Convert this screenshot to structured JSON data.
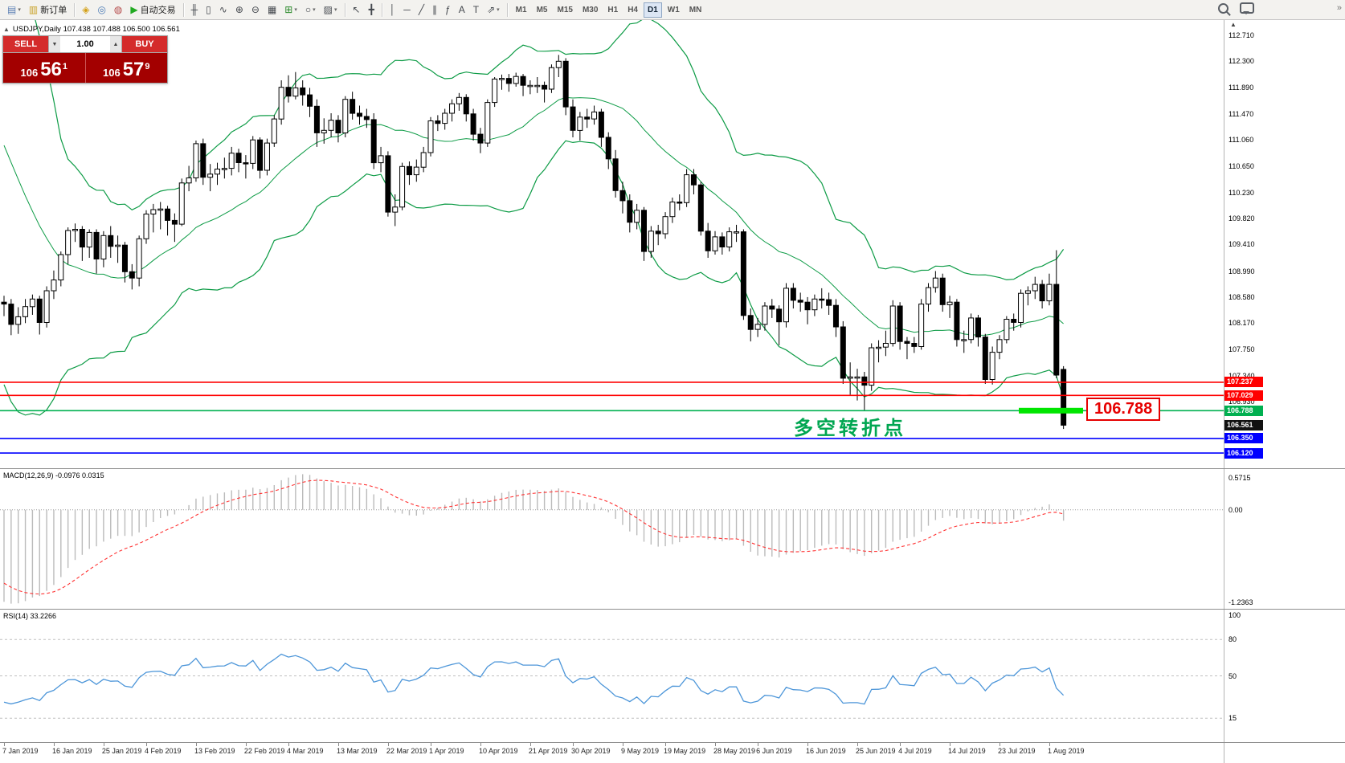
{
  "colors": {
    "bull_candle": "#FFFFFF",
    "bear_candle": "#000000",
    "candle_border": "#000000",
    "bollinger": "#0C9B45",
    "level_red": "#FF0000",
    "level_blue": "#0000FF",
    "level_green": "#00B050",
    "highlight_green": "#00E600",
    "macd_hist": "#BBBBBB",
    "macd_signal": "#FF3333",
    "rsi_line": "#4D96D9",
    "sell_button": "#D42B2B",
    "price_panel": "#A30000",
    "annotation": "#00A651",
    "current_tag": "#111111"
  },
  "toolbar": {
    "timeframes": [
      "M1",
      "M5",
      "M15",
      "M30",
      "H1",
      "H4",
      "D1",
      "W1",
      "MN"
    ],
    "active_timeframe": "D1",
    "icon_groups": [
      {
        "items": [
          {
            "name": "new-chart-button",
            "glyph": "▤",
            "glyph_color": "#5b7fb4",
            "caret": true
          },
          {
            "name": "new-order-button",
            "glyph": "▥",
            "glyph_color": "#c9a227",
            "label": "新订单"
          }
        ]
      },
      {
        "items": [
          {
            "name": "market-watch-button",
            "glyph": "◈",
            "glyph_color": "#d4a017"
          },
          {
            "name": "navigator-button",
            "glyph": "◎",
            "glyph_color": "#4a7ab5"
          },
          {
            "name": "terminal-button",
            "glyph": "◍",
            "glyph_color": "#b54a4a"
          },
          {
            "name": "autotrading-button",
            "glyph": "▶",
            "glyph_color": "#22aa22",
            "label": "自动交易"
          }
        ]
      },
      {
        "items": [
          {
            "name": "bar-chart-button",
            "glyph": "╫"
          },
          {
            "name": "candlestick-chart-button",
            "glyph": "▯"
          },
          {
            "name": "line-chart-button",
            "glyph": "∿"
          },
          {
            "name": "zoom-in-button",
            "glyph": "⊕"
          },
          {
            "name": "zoom-out-button",
            "glyph": "⊖"
          },
          {
            "name": "tile-windows-button",
            "glyph": "▦"
          },
          {
            "name": "indicators-button",
            "glyph": "⊞",
            "glyph_color": "#2a8a2a",
            "caret": true
          },
          {
            "name": "periods-button",
            "glyph": "○",
            "caret": true
          },
          {
            "name": "templates-button",
            "glyph": "▨",
            "caret": true
          }
        ]
      },
      {
        "items": [
          {
            "name": "cursor-button",
            "glyph": "↖"
          },
          {
            "name": "crosshair-button",
            "glyph": "╋"
          }
        ]
      },
      {
        "items": [
          {
            "name": "vertical-line-button",
            "glyph": "│"
          },
          {
            "name": "horizontal-line-button",
            "glyph": "─"
          },
          {
            "name": "trendline-button",
            "glyph": "╱"
          },
          {
            "name": "channel-button",
            "glyph": "∥"
          },
          {
            "name": "fibonacci-button",
            "glyph": "ƒ"
          },
          {
            "name": "text-button",
            "glyph": "A"
          },
          {
            "name": "label-button",
            "glyph": "T"
          },
          {
            "name": "arrows-button",
            "glyph": "⇗",
            "caret": true
          }
        ]
      }
    ],
    "overflow_glyph": "»"
  },
  "chart": {
    "symbol_title": "USDJPY,Daily 107.438 107.488 106.500 106.561"
  },
  "trade_panel": {
    "sell_label": "SELL",
    "buy_label": "BUY",
    "volume": "1.00",
    "sell_price_prefix": "106",
    "sell_price_main": "56",
    "sell_price_sup": "1",
    "buy_price_prefix": "106",
    "buy_price_main": "57",
    "buy_price_sup": "9"
  },
  "annotation": {
    "text": "多空转折点",
    "price_label": "106.788"
  },
  "levels": [
    {
      "price": 107.237,
      "color": "#FF0000",
      "tag": "107.237"
    },
    {
      "price": 107.029,
      "color": "#FF0000",
      "tag": "107.029"
    },
    {
      "price": 106.788,
      "color": "#00B050",
      "tag": "106.788",
      "highlight": true
    },
    {
      "price": 106.35,
      "color": "#0000FF",
      "tag": "106.350"
    },
    {
      "price": 106.12,
      "color": "#0000FF",
      "tag": "106.120"
    }
  ],
  "current_price_tag": "106.561",
  "price_axis_labels": [
    "112.710",
    "112.300",
    "111.890",
    "111.470",
    "111.060",
    "110.650",
    "110.230",
    "109.820",
    "109.410",
    "108.990",
    "108.580",
    "108.170",
    "107.750",
    "107.340",
    "106.930"
  ],
  "macd": {
    "label": "MACD(12,26,9) -0.0976 0.0315",
    "axis": [
      "0.5715",
      "0.00",
      "-1.2363"
    ]
  },
  "rsi": {
    "label": "RSI(14) 33.2266",
    "axis": [
      "100",
      "80",
      "50",
      "15"
    ],
    "levels": [
      80,
      50,
      15
    ],
    "period": 14
  },
  "date_axis": [
    {
      "idx": 0,
      "label": "7 Jan 2019"
    },
    {
      "idx": 7,
      "label": "16 Jan 2019"
    },
    {
      "idx": 14,
      "label": "25 Jan 2019"
    },
    {
      "idx": 20,
      "label": "4 Feb 2019"
    },
    {
      "idx": 27,
      "label": "13 Feb 2019"
    },
    {
      "idx": 34,
      "label": "22 Feb 2019"
    },
    {
      "idx": 40,
      "label": "4 Mar 2019"
    },
    {
      "idx": 47,
      "label": "13 Mar 2019"
    },
    {
      "idx": 54,
      "label": "22 Mar 2019"
    },
    {
      "idx": 60,
      "label": "1 Apr 2019"
    },
    {
      "idx": 67,
      "label": "10 Apr 2019"
    },
    {
      "idx": 74,
      "label": "21 Apr 2019"
    },
    {
      "idx": 80,
      "label": "30 Apr 2019"
    },
    {
      "idx": 87,
      "label": "9 May 2019"
    },
    {
      "idx": 93,
      "label": "19 May 2019"
    },
    {
      "idx": 100,
      "label": "28 May 2019"
    },
    {
      "idx": 106,
      "label": "6 Jun 2019"
    },
    {
      "idx": 113,
      "label": "16 Jun 2019"
    },
    {
      "idx": 120,
      "label": "25 Jun 2019"
    },
    {
      "idx": 126,
      "label": "4 Jul 2019"
    },
    {
      "idx": 133,
      "label": "14 Jul 2019"
    },
    {
      "idx": 140,
      "label": "23 Jul 2019"
    },
    {
      "idx": 147,
      "label": "1 Aug 2019"
    }
  ],
  "chart_data": {
    "type": "candlestick",
    "symbol": "USDJPY",
    "timeframe": "Daily",
    "visible_price_range": [
      105.88,
      112.95
    ],
    "bollinger": {
      "period": 20,
      "deviation": 2
    },
    "macd_params": [
      12,
      26,
      9
    ],
    "rsi_period": 14,
    "warmup_closes": [
      113.65,
      112.97,
      112.68,
      112.69,
      112.69,
      113.38,
      113.3,
      113.54,
      113.6,
      113.63,
      113.4,
      112.83,
      112.56,
      112.47,
      112.35,
      111.25,
      110.35,
      110.28,
      110.47,
      109.7,
      109.58,
      110.28,
      109.69,
      108.88,
      107.63,
      108.52
    ],
    "candles": [
      [
        108.5,
        108.6,
        108.28,
        108.47
      ],
      [
        108.47,
        108.55,
        107.98,
        108.15
      ],
      [
        108.15,
        108.42,
        108.0,
        108.27
      ],
      [
        108.27,
        108.55,
        108.17,
        108.43
      ],
      [
        108.43,
        108.62,
        108.3,
        108.55
      ],
      [
        108.55,
        108.6,
        107.99,
        108.18
      ],
      [
        108.18,
        108.75,
        108.1,
        108.68
      ],
      [
        108.68,
        109.0,
        108.55,
        108.85
      ],
      [
        108.85,
        109.3,
        108.75,
        109.25
      ],
      [
        109.25,
        109.68,
        109.1,
        109.63
      ],
      [
        109.63,
        109.74,
        109.45,
        109.65
      ],
      [
        109.65,
        109.7,
        109.15,
        109.37
      ],
      [
        109.37,
        109.65,
        109.2,
        109.6
      ],
      [
        109.6,
        109.65,
        108.95,
        109.18
      ],
      [
        109.18,
        109.62,
        109.05,
        109.55
      ],
      [
        109.55,
        109.7,
        109.2,
        109.38
      ],
      [
        109.38,
        109.55,
        109.12,
        109.4
      ],
      [
        109.4,
        109.45,
        108.81,
        108.98
      ],
      [
        108.98,
        109.1,
        108.7,
        108.88
      ],
      [
        108.88,
        109.55,
        108.75,
        109.5
      ],
      [
        109.5,
        109.95,
        109.42,
        109.89
      ],
      [
        109.89,
        110.05,
        109.6,
        109.96
      ],
      [
        109.96,
        110.08,
        109.65,
        109.97
      ],
      [
        109.97,
        110.02,
        109.55,
        109.79
      ],
      [
        109.79,
        109.9,
        109.45,
        109.73
      ],
      [
        109.73,
        110.45,
        109.7,
        110.38
      ],
      [
        110.38,
        110.65,
        110.25,
        110.46
      ],
      [
        110.46,
        111.05,
        110.4,
        111.0
      ],
      [
        111.0,
        111.08,
        110.35,
        110.47
      ],
      [
        110.47,
        110.68,
        110.25,
        110.52
      ],
      [
        110.52,
        110.7,
        110.35,
        110.6
      ],
      [
        110.6,
        110.78,
        110.45,
        110.61
      ],
      [
        110.61,
        110.95,
        110.5,
        110.85
      ],
      [
        110.85,
        110.92,
        110.55,
        110.7
      ],
      [
        110.7,
        110.82,
        110.45,
        110.69
      ],
      [
        110.69,
        111.12,
        110.6,
        111.06
      ],
      [
        111.06,
        111.1,
        110.45,
        110.58
      ],
      [
        110.58,
        111.08,
        110.5,
        111.01
      ],
      [
        111.01,
        111.45,
        110.95,
        111.39
      ],
      [
        111.39,
        112.0,
        111.3,
        111.89
      ],
      [
        111.89,
        112.08,
        111.65,
        111.75
      ],
      [
        111.75,
        112.13,
        111.7,
        111.88
      ],
      [
        111.88,
        112.0,
        111.6,
        111.77
      ],
      [
        111.77,
        111.88,
        111.42,
        111.59
      ],
      [
        111.59,
        111.7,
        110.95,
        111.17
      ],
      [
        111.17,
        111.4,
        111.0,
        111.21
      ],
      [
        111.21,
        111.48,
        111.1,
        111.37
      ],
      [
        111.37,
        111.45,
        111.02,
        111.17
      ],
      [
        111.17,
        111.75,
        111.1,
        111.7
      ],
      [
        111.7,
        111.82,
        111.38,
        111.48
      ],
      [
        111.48,
        111.6,
        111.3,
        111.43
      ],
      [
        111.43,
        111.55,
        111.25,
        111.38
      ],
      [
        111.38,
        111.48,
        110.6,
        110.7
      ],
      [
        110.7,
        110.95,
        110.55,
        110.81
      ],
      [
        110.81,
        110.88,
        109.85,
        109.92
      ],
      [
        109.92,
        110.2,
        109.7,
        110.0
      ],
      [
        110.0,
        110.7,
        109.95,
        110.64
      ],
      [
        110.64,
        110.72,
        110.35,
        110.51
      ],
      [
        110.51,
        110.75,
        110.4,
        110.63
      ],
      [
        110.63,
        110.95,
        110.55,
        110.86
      ],
      [
        110.86,
        111.42,
        110.8,
        111.36
      ],
      [
        111.36,
        111.45,
        111.2,
        111.32
      ],
      [
        111.32,
        111.55,
        111.22,
        111.48
      ],
      [
        111.48,
        111.7,
        111.35,
        111.63
      ],
      [
        111.63,
        111.8,
        111.52,
        111.73
      ],
      [
        111.73,
        111.78,
        111.35,
        111.47
      ],
      [
        111.47,
        111.55,
        111.05,
        111.15
      ],
      [
        111.15,
        111.25,
        110.85,
        111.01
      ],
      [
        111.01,
        111.7,
        110.95,
        111.65
      ],
      [
        111.65,
        112.05,
        111.58,
        112.02
      ],
      [
        112.02,
        112.09,
        111.85,
        112.03
      ],
      [
        112.03,
        112.1,
        111.82,
        111.95
      ],
      [
        111.95,
        112.12,
        111.9,
        112.06
      ],
      [
        112.06,
        112.1,
        111.75,
        111.92
      ],
      [
        111.92,
        112.0,
        111.78,
        111.92
      ],
      [
        111.92,
        112.05,
        111.8,
        111.92
      ],
      [
        111.92,
        111.98,
        111.65,
        111.86
      ],
      [
        111.86,
        112.25,
        111.8,
        112.2
      ],
      [
        112.2,
        112.4,
        112.05,
        112.3
      ],
      [
        112.3,
        112.35,
        111.45,
        111.58
      ],
      [
        111.58,
        111.7,
        111.1,
        111.21
      ],
      [
        111.21,
        111.5,
        111.05,
        111.42
      ],
      [
        111.42,
        111.55,
        111.25,
        111.39
      ],
      [
        111.39,
        111.6,
        111.3,
        111.5
      ],
      [
        111.5,
        111.55,
        110.95,
        111.1
      ],
      [
        111.1,
        111.18,
        110.6,
        110.76
      ],
      [
        110.76,
        110.9,
        110.15,
        110.26
      ],
      [
        110.26,
        110.4,
        109.9,
        110.1
      ],
      [
        110.1,
        110.2,
        109.6,
        109.76
      ],
      [
        109.76,
        110.05,
        109.65,
        109.95
      ],
      [
        109.95,
        110.0,
        109.15,
        109.3
      ],
      [
        109.3,
        109.7,
        109.2,
        109.62
      ],
      [
        109.62,
        109.72,
        109.4,
        109.58
      ],
      [
        109.58,
        109.92,
        109.5,
        109.85
      ],
      [
        109.85,
        110.15,
        109.75,
        110.08
      ],
      [
        110.08,
        110.2,
        109.95,
        110.07
      ],
      [
        110.07,
        110.6,
        110.0,
        110.51
      ],
      [
        110.51,
        110.6,
        110.2,
        110.35
      ],
      [
        110.35,
        110.4,
        109.55,
        109.62
      ],
      [
        109.62,
        109.75,
        109.2,
        109.31
      ],
      [
        109.31,
        109.62,
        109.25,
        109.53
      ],
      [
        109.53,
        109.6,
        109.25,
        109.37
      ],
      [
        109.37,
        109.68,
        109.3,
        109.61
      ],
      [
        109.61,
        109.72,
        109.45,
        109.61
      ],
      [
        109.61,
        109.65,
        108.22,
        108.29
      ],
      [
        108.29,
        108.4,
        107.88,
        108.07
      ],
      [
        108.07,
        108.25,
        107.95,
        108.15
      ],
      [
        108.15,
        108.5,
        108.05,
        108.44
      ],
      [
        108.44,
        108.55,
        108.25,
        108.39
      ],
      [
        108.39,
        108.45,
        107.82,
        108.19
      ],
      [
        108.19,
        108.8,
        108.1,
        108.72
      ],
      [
        108.72,
        108.8,
        108.4,
        108.53
      ],
      [
        108.53,
        108.65,
        108.35,
        108.5
      ],
      [
        108.5,
        108.58,
        108.15,
        108.38
      ],
      [
        108.38,
        108.62,
        108.28,
        108.55
      ],
      [
        108.55,
        108.72,
        108.4,
        108.54
      ],
      [
        108.54,
        108.65,
        108.3,
        108.45
      ],
      [
        108.45,
        108.55,
        107.95,
        108.11
      ],
      [
        108.11,
        108.2,
        107.21,
        107.3
      ],
      [
        107.3,
        107.55,
        107.04,
        107.32
      ],
      [
        107.32,
        107.45,
        106.95,
        107.32
      ],
      [
        107.32,
        107.4,
        106.78,
        107.19
      ],
      [
        107.19,
        107.85,
        107.1,
        107.78
      ],
      [
        107.78,
        107.9,
        107.55,
        107.79
      ],
      [
        107.79,
        108.05,
        107.65,
        107.85
      ],
      [
        107.85,
        108.53,
        107.8,
        108.44
      ],
      [
        108.44,
        108.5,
        107.75,
        107.88
      ],
      [
        107.88,
        107.95,
        107.6,
        107.85
      ],
      [
        107.85,
        107.95,
        107.7,
        107.8
      ],
      [
        107.8,
        108.55,
        107.75,
        108.47
      ],
      [
        108.47,
        108.8,
        108.35,
        108.73
      ],
      [
        108.73,
        108.99,
        108.65,
        108.88
      ],
      [
        108.88,
        108.95,
        108.35,
        108.46
      ],
      [
        108.46,
        108.6,
        108.25,
        108.5
      ],
      [
        108.5,
        108.55,
        107.8,
        107.91
      ],
      [
        107.91,
        108.05,
        107.7,
        107.91
      ],
      [
        107.91,
        108.32,
        107.85,
        108.25
      ],
      [
        108.25,
        108.3,
        107.8,
        107.95
      ],
      [
        107.95,
        108.0,
        107.21,
        107.28
      ],
      [
        107.28,
        107.8,
        107.2,
        107.71
      ],
      [
        107.71,
        107.98,
        107.6,
        107.91
      ],
      [
        107.91,
        108.28,
        107.85,
        108.23
      ],
      [
        108.23,
        108.32,
        108.05,
        108.18
      ],
      [
        108.18,
        108.7,
        108.1,
        108.64
      ],
      [
        108.64,
        108.75,
        108.45,
        108.68
      ],
      [
        108.68,
        108.9,
        108.55,
        108.78
      ],
      [
        108.78,
        108.85,
        108.4,
        108.52
      ],
      [
        108.52,
        108.95,
        108.45,
        108.78
      ],
      [
        108.78,
        109.32,
        107.3,
        107.35
      ],
      [
        107.44,
        107.49,
        106.5,
        106.56
      ]
    ]
  }
}
